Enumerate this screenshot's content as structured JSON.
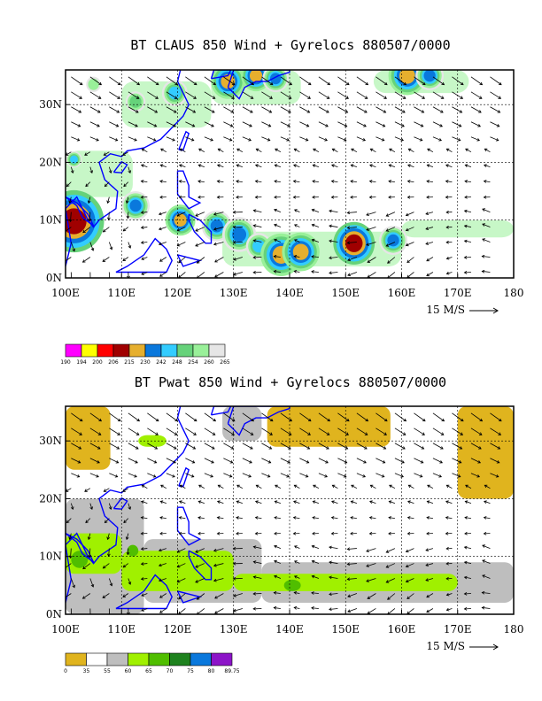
{
  "colors": {
    "coast": "#0000ff",
    "grid": "#000000",
    "vector": "#000000"
  },
  "chart_data": [
    {
      "type": "heatmap",
      "title": "BT CLAUS 850 Wind + Gyrelocs 880507/0000",
      "xlabel": "",
      "ylabel": "",
      "x_ticks": [
        "100E",
        "110E",
        "120E",
        "130E",
        "140E",
        "150E",
        "160E",
        "170E",
        "180"
      ],
      "y_ticks": [
        "0N",
        "10N",
        "20N",
        "30N"
      ],
      "xlim": [
        100,
        180
      ],
      "ylim": [
        0,
        36
      ],
      "grid": true,
      "vector_reference_label": "15 M/S",
      "colorbar": {
        "labels": [
          "190",
          "194",
          "200",
          "206",
          "215",
          "230",
          "242",
          "248",
          "254",
          "260",
          "265"
        ],
        "colors": [
          "#ff00ff",
          "#ffff00",
          "#ff0000",
          "#a00000",
          "#e6af2e",
          "#0a78dc",
          "#33ccff",
          "#66d27a",
          "#99f099",
          "#e6e6e6"
        ]
      },
      "blobs": [
        {
          "lon": 101.5,
          "lat": 9.8,
          "r": 3.2,
          "level": 3
        },
        {
          "lon": 112.5,
          "lat": 12.5,
          "r": 1.5,
          "level": 5
        },
        {
          "lon": 120.5,
          "lat": 10.0,
          "r": 1.6,
          "level": 4
        },
        {
          "lon": 127.0,
          "lat": 9.0,
          "r": 1.6,
          "level": 5
        },
        {
          "lon": 131.0,
          "lat": 7.5,
          "r": 1.8,
          "level": 5
        },
        {
          "lon": 134.5,
          "lat": 5.5,
          "r": 1.6,
          "level": 6
        },
        {
          "lon": 138.5,
          "lat": 4.0,
          "r": 2.2,
          "level": 4
        },
        {
          "lon": 142.0,
          "lat": 4.5,
          "r": 2.0,
          "level": 4
        },
        {
          "lon": 151.5,
          "lat": 6.0,
          "r": 2.2,
          "level": 3
        },
        {
          "lon": 158.5,
          "lat": 6.5,
          "r": 1.5,
          "level": 5
        },
        {
          "lon": 129.0,
          "lat": 34.0,
          "r": 1.8,
          "level": 4
        },
        {
          "lon": 134.0,
          "lat": 35.0,
          "r": 1.6,
          "level": 4
        },
        {
          "lon": 137.5,
          "lat": 34.5,
          "r": 1.4,
          "level": 5
        },
        {
          "lon": 161.0,
          "lat": 35.0,
          "r": 2.0,
          "level": 4
        },
        {
          "lon": 165.0,
          "lat": 35.0,
          "r": 1.5,
          "level": 5
        },
        {
          "lon": 101.5,
          "lat": 20.5,
          "r": 1.0,
          "level": 6
        },
        {
          "lon": 112.5,
          "lat": 30.5,
          "r": 1.5,
          "level": 7
        },
        {
          "lon": 119.5,
          "lat": 32.0,
          "r": 1.6,
          "level": 6
        },
        {
          "lon": 105.0,
          "lat": 33.5,
          "r": 1.4,
          "level": 8
        }
      ],
      "bands": [
        {
          "lon1": 100,
          "lon2": 112,
          "lat1": 14,
          "lat2": 22,
          "level": 8
        },
        {
          "lon1": 110,
          "lon2": 126,
          "lat1": 26,
          "lat2": 34,
          "level": 8
        },
        {
          "lon1": 126,
          "lon2": 142,
          "lat1": 30,
          "lat2": 36,
          "level": 8
        },
        {
          "lon1": 155,
          "lon2": 172,
          "lat1": 32,
          "lat2": 36,
          "level": 8
        },
        {
          "lon1": 128,
          "lon2": 160,
          "lat1": 2,
          "lat2": 8,
          "level": 8
        },
        {
          "lon1": 160,
          "lon2": 180,
          "lat1": 7,
          "lat2": 10,
          "level": 8
        }
      ]
    },
    {
      "type": "heatmap",
      "title": "BT Pwat 850 Wind + Gyrelocs 880507/0000",
      "xlabel": "",
      "ylabel": "",
      "x_ticks": [
        "100E",
        "110E",
        "120E",
        "130E",
        "140E",
        "150E",
        "160E",
        "170E",
        "180"
      ],
      "y_ticks": [
        "0N",
        "10N",
        "20N",
        "30N"
      ],
      "xlim": [
        100,
        180
      ],
      "ylim": [
        0,
        36
      ],
      "grid": true,
      "vector_reference_label": "15 M/S",
      "colorbar": {
        "labels": [
          "0",
          "35",
          "55",
          "60",
          "65",
          "70",
          "75",
          "80",
          "89.75"
        ],
        "colors": [
          "#e0b41e",
          "#ffffff",
          "#bebebe",
          "#a0f000",
          "#50be00",
          "#1e821e",
          "#0a78dc",
          "#8c14c8"
        ]
      },
      "areas": [
        {
          "lon1": 100,
          "lon2": 108,
          "lat1": 25,
          "lat2": 36,
          "level": 0
        },
        {
          "lon1": 136,
          "lon2": 158,
          "lat1": 29,
          "lat2": 36,
          "level": 0
        },
        {
          "lon1": 170,
          "lon2": 180,
          "lat1": 20,
          "lat2": 36,
          "level": 0
        },
        {
          "lon1": 100,
          "lon2": 114,
          "lat1": 0,
          "lat2": 20,
          "level": 2
        },
        {
          "lon1": 114,
          "lon2": 135,
          "lat1": 2,
          "lat2": 13,
          "level": 2
        },
        {
          "lon1": 135,
          "lon2": 180,
          "lat1": 2,
          "lat2": 9,
          "level": 2
        },
        {
          "lon1": 128,
          "lon2": 135,
          "lat1": 30,
          "lat2": 36,
          "level": 2
        },
        {
          "lon1": 100,
          "lon2": 110,
          "lat1": 7,
          "lat2": 14,
          "level": 3
        },
        {
          "lon1": 110,
          "lon2": 130,
          "lat1": 4,
          "lat2": 11,
          "level": 3
        },
        {
          "lon1": 130,
          "lon2": 170,
          "lat1": 4,
          "lat2": 7,
          "level": 3
        },
        {
          "lon1": 113,
          "lon2": 118,
          "lat1": 29,
          "lat2": 31,
          "level": 3
        },
        {
          "lon1": 101,
          "lon2": 104,
          "lat1": 8,
          "lat2": 11,
          "level": 4
        },
        {
          "lon1": 111,
          "lon2": 113,
          "lat1": 10,
          "lat2": 12,
          "level": 4
        },
        {
          "lon1": 139,
          "lon2": 142,
          "lat1": 4,
          "lat2": 6,
          "level": 4
        }
      ]
    }
  ]
}
